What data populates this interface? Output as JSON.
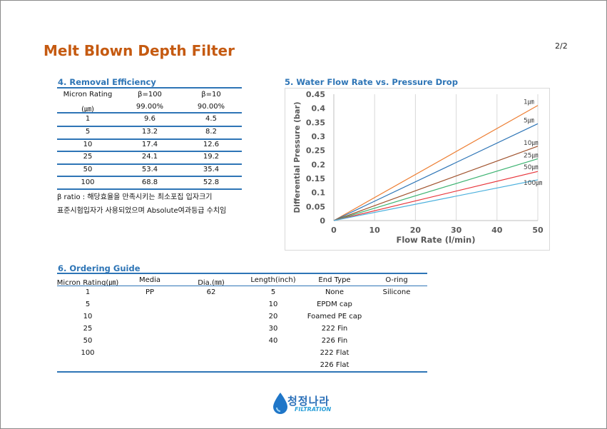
{
  "header": {
    "title": "Melt Blown Depth Filter",
    "page_number": "2/2"
  },
  "removal_efficiency": {
    "title": "4. Removal Efficiency",
    "headers": [
      "Micron Rating",
      "β=100",
      "β=10"
    ],
    "units_row": [
      "(㎛)",
      "99.00%",
      "90.00%"
    ],
    "rows": [
      [
        "1",
        "9.6",
        "4.5"
      ],
      [
        "5",
        "13.2",
        "8.2"
      ],
      [
        "10",
        "17.4",
        "12.6"
      ],
      [
        "25",
        "24.1",
        "19.2"
      ],
      [
        "50",
        "53.4",
        "35.4"
      ],
      [
        "100",
        "68.8",
        "52.8"
      ]
    ],
    "note_line1": "β ratio : 해당효율을 만족시키는 최소포집 입자크기",
    "note_line2": "표준시험입자가 사용되었으며 Absolute여과등급 수치임"
  },
  "flow_chart": {
    "title": "5. Water Flow Rate vs. Pressure Drop"
  },
  "chart_data": {
    "type": "line",
    "title": "",
    "xlabel": "Flow Rate (l/min)",
    "ylabel": "Differential Pressure (bar)",
    "xlim": [
      0,
      50
    ],
    "ylim": [
      0,
      0.45
    ],
    "xticks": [
      "0",
      "10",
      "20",
      "30",
      "40",
      "50"
    ],
    "yticks": [
      "0",
      "0.05",
      "0.1",
      "0.15",
      "0.2",
      "0.25",
      "0.3",
      "0.35",
      "0.4",
      "0.45"
    ],
    "grid": "vertical",
    "series": [
      {
        "name": "1㎛",
        "color": "#ed7d31",
        "x": [
          0,
          50
        ],
        "y": [
          0,
          0.41
        ]
      },
      {
        "name": "5㎛",
        "color": "#2e75b6",
        "x": [
          0,
          50
        ],
        "y": [
          0,
          0.345
        ]
      },
      {
        "name": "10㎛",
        "color": "#a0522d",
        "x": [
          0,
          50
        ],
        "y": [
          0,
          0.265
        ]
      },
      {
        "name": "25㎛",
        "color": "#3cb371",
        "x": [
          0,
          50
        ],
        "y": [
          0,
          0.22
        ]
      },
      {
        "name": "50㎛",
        "color": "#e8343a",
        "x": [
          0,
          50
        ],
        "y": [
          0,
          0.175
        ]
      },
      {
        "name": "100㎛",
        "color": "#4ab0dd",
        "x": [
          0,
          50
        ],
        "y": [
          0,
          0.145
        ]
      }
    ]
  },
  "ordering_guide": {
    "title": "6. Ordering Guide",
    "headers": [
      "Micron Rating(㎛)",
      "Media",
      "Dia.(㎜)",
      "Length(inch)",
      "End Type",
      "O-ring"
    ],
    "rows": [
      [
        "1",
        "PP",
        "62",
        "5",
        "None",
        "Silicone"
      ],
      [
        "5",
        "",
        "",
        "10",
        "EPDM cap",
        ""
      ],
      [
        "10",
        "",
        "",
        "20",
        "Foamed PE cap",
        ""
      ],
      [
        "25",
        "",
        "",
        "30",
        "222 Fin",
        ""
      ],
      [
        "50",
        "",
        "",
        "40",
        "226 Fin",
        ""
      ],
      [
        "100",
        "",
        "",
        "",
        "222 Flat",
        ""
      ],
      [
        "",
        "",
        "",
        "",
        "226 Flat",
        ""
      ]
    ]
  },
  "logo": {
    "text": "청정나라",
    "subtext": "FILTRATION"
  }
}
